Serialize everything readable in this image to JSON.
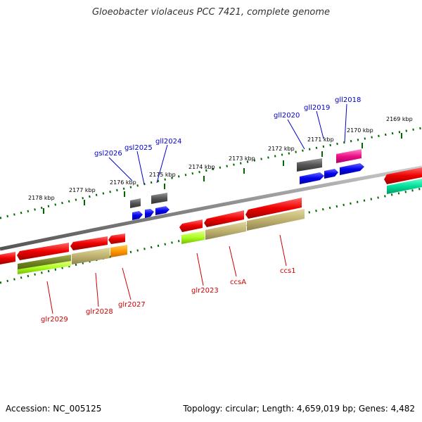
{
  "title": "Gloeobacter violaceus PCC 7421, complete genome",
  "footer": {
    "accession": "Accession: NC_005125",
    "topology": "Topology: circular; Length: 4,659,019 bp; Genes: 4,482"
  },
  "kbp_labels": [
    "2178 kbp",
    "2177 kbp",
    "2176 kbp",
    "2175 kbp",
    "2174 kbp",
    "2173 kbp",
    "2172 kbp",
    "2171 kbp",
    "2170 kbp",
    "2169 kbp"
  ],
  "upper_genes": [
    "gsl2026",
    "gsl2025",
    "gll2024",
    "gll2020",
    "gll2019",
    "gll2018"
  ],
  "lower_genes": [
    "glr2029",
    "glr2028",
    "glr2027",
    "glr2023",
    "ccsA",
    "ccs1"
  ],
  "colors": {
    "upper_label": "#0000cc",
    "lower_label": "#cc0000",
    "tick": "#006600",
    "backbone": "#888888"
  }
}
